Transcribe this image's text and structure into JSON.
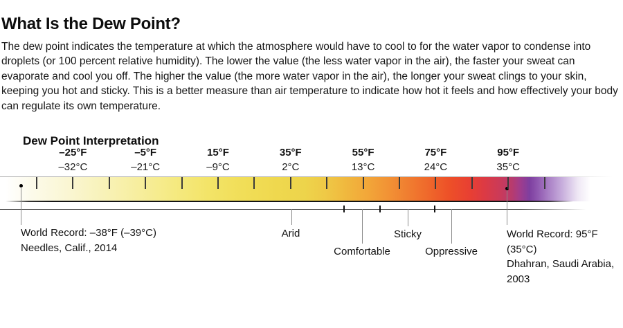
{
  "page": {
    "title": "What Is the Dew Point?",
    "intro": "The dew point indicates the temperature at which the atmosphere would have to cool to for the water vapor to condense into droplets (or 100 percent relative humidity). The lower the value (the less water vapor in the air), the faster your sweat can evaporate and cool you off. The higher the value (the more water vapor in the air), the longer your sweat clings to your skin, keeping you hot and sticky. This is a better measure than air temperature to indicate how hot it feels and how effectively your body can regulate its own temperature."
  },
  "chart_data": {
    "type": "gradient-scale",
    "title": "Dew Point Interpretation",
    "axis": {
      "scale_min_f": -35,
      "scale_max_f": 105,
      "tick_step_f": 10,
      "tick_count": 15,
      "labeled_tick_indexes": [
        1,
        3,
        5,
        7,
        9,
        11,
        13
      ],
      "tick_labels": [
        {
          "f": "–25°F",
          "c": "–32°C"
        },
        {
          "f": "–5°F",
          "c": "–21°C"
        },
        {
          "f": "15°F",
          "c": "–9°C"
        },
        {
          "f": "35°F",
          "c": "2°C"
        },
        {
          "f": "55°F",
          "c": "13°C"
        },
        {
          "f": "75°F",
          "c": "24°C"
        },
        {
          "f": "95°F",
          "c": "35°C"
        }
      ]
    },
    "zones": [
      {
        "label": "Arid"
      },
      {
        "label": "Comfortable"
      },
      {
        "label": "Sticky"
      },
      {
        "label": "Oppressive"
      }
    ],
    "zone_boundaries_f": [
      50,
      60,
      75
    ],
    "records": [
      {
        "lines": [
          "World Record: –38°F (–39°C)",
          "Needles, Calif., 2014"
        ],
        "value_f": -38
      },
      {
        "lines": [
          "World Record: 95°F (35°C)",
          "Dhahran, Saudi Arabia,",
          "2003"
        ],
        "value_f": 95
      }
    ],
    "gradient": [
      {
        "pos": 0,
        "color": "#ffffff"
      },
      {
        "pos": 5,
        "color": "#fcfae8"
      },
      {
        "pos": 10.9,
        "color": "#faf6d2"
      },
      {
        "pos": 16.8,
        "color": "#f8f2b8"
      },
      {
        "pos": 22.7,
        "color": "#f7ee9e"
      },
      {
        "pos": 28.6,
        "color": "#f5ea82"
      },
      {
        "pos": 34.6,
        "color": "#f3e468"
      },
      {
        "pos": 40.5,
        "color": "#f1de58"
      },
      {
        "pos": 46.4,
        "color": "#efd84e"
      },
      {
        "pos": 51.1,
        "color": "#edd44b"
      },
      {
        "pos": 54.7,
        "color": "#efc946"
      },
      {
        "pos": 58.2,
        "color": "#f0b83e"
      },
      {
        "pos": 61.8,
        "color": "#f2a739"
      },
      {
        "pos": 65.3,
        "color": "#f29335"
      },
      {
        "pos": 68.9,
        "color": "#f07d30"
      },
      {
        "pos": 72.4,
        "color": "#ef672b"
      },
      {
        "pos": 76.0,
        "color": "#ed4f28"
      },
      {
        "pos": 79.5,
        "color": "#e83f33"
      },
      {
        "pos": 81.9,
        "color": "#dc3a44"
      },
      {
        "pos": 84.3,
        "color": "#cc3a57"
      },
      {
        "pos": 86.6,
        "color": "#b73b6e"
      },
      {
        "pos": 88.0,
        "color": "#a03c8c"
      },
      {
        "pos": 89.6,
        "color": "#7e3fa0"
      },
      {
        "pos": 91.0,
        "color": "#9058b0"
      },
      {
        "pos": 92.8,
        "color": "#a97fc5"
      },
      {
        "pos": 95.1,
        "color": "#c7addc"
      },
      {
        "pos": 97.9,
        "color": "#efe8f5"
      },
      {
        "pos": 100,
        "color": "#ffffff"
      }
    ]
  }
}
